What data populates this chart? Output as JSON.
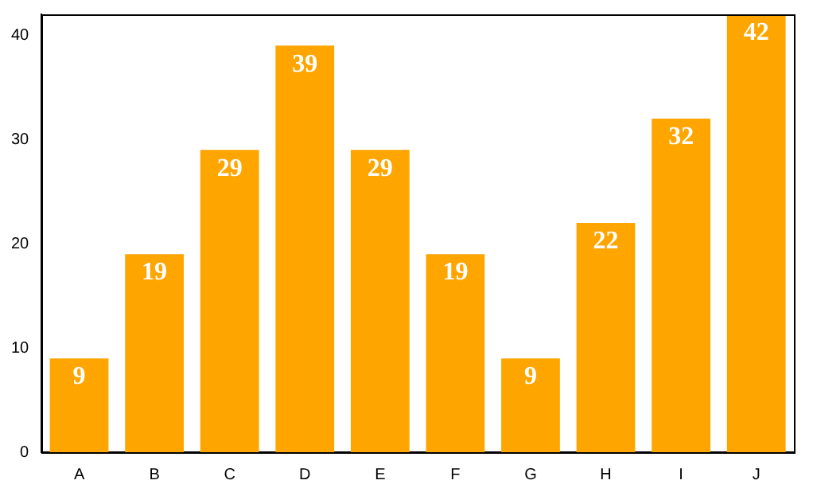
{
  "chart_data": {
    "type": "bar",
    "categories": [
      "A",
      "B",
      "C",
      "D",
      "E",
      "F",
      "G",
      "H",
      "I",
      "J"
    ],
    "values": [
      9,
      19,
      29,
      39,
      29,
      19,
      9,
      22,
      32,
      42
    ],
    "color": "#ffa500",
    "ylim": [
      0,
      42
    ],
    "yticks": [
      0,
      10,
      20,
      30,
      40
    ],
    "grid": false,
    "legend": false,
    "data_labels": true
  }
}
